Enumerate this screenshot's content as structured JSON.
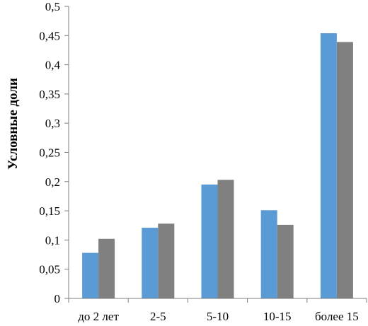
{
  "chart_data": {
    "type": "bar",
    "ylabel": "Условные доли",
    "xlabel": "",
    "ylim": [
      0,
      0.5
    ],
    "y_ticks": [
      "0",
      "0,05",
      "0,1",
      "0,15",
      "0,2",
      "0,25",
      "0,3",
      "0,35",
      "0,4",
      "0,45",
      "0,5"
    ],
    "y_tick_values": [
      0,
      0.05,
      0.1,
      0.15,
      0.2,
      0.25,
      0.3,
      0.35,
      0.4,
      0.45,
      0.5
    ],
    "grid": false,
    "legend": "none",
    "categories": [
      "до 2 лет",
      "2-5",
      "5-10",
      "10-15",
      "более 15"
    ],
    "series": [
      {
        "color": "#5b9bd5",
        "values": [
          0.078,
          0.121,
          0.195,
          0.151,
          0.454
        ]
      },
      {
        "color": "#808080",
        "values": [
          0.102,
          0.128,
          0.203,
          0.126,
          0.439
        ]
      }
    ]
  }
}
